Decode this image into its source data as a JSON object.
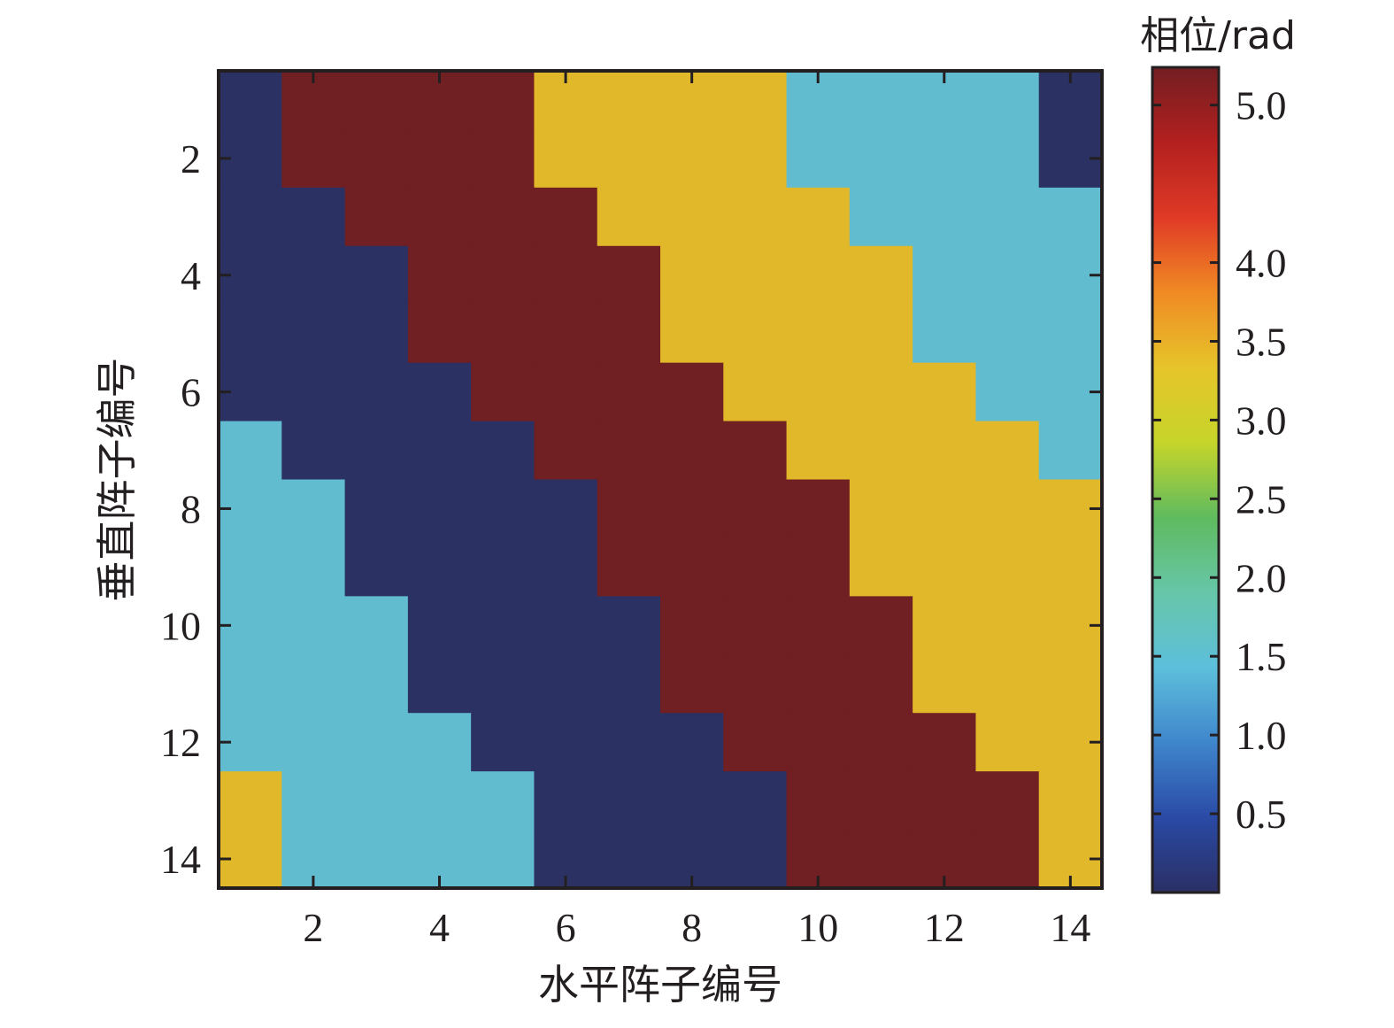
{
  "chart_data": {
    "type": "heatmap",
    "xlabel": "水平阵子编号",
    "ylabel": "垂直阵子编号",
    "x_ticks": [
      "2",
      "4",
      "6",
      "8",
      "10",
      "12",
      "14"
    ],
    "y_ticks": [
      "2",
      "4",
      "6",
      "8",
      "10",
      "12",
      "14"
    ],
    "xlim": [
      0.5,
      14.5
    ],
    "ylim": [
      0.5,
      14.5
    ],
    "y_direction": "top-to-bottom",
    "colorbar": {
      "title": "相位/rad",
      "ticks": [
        "0.5",
        "1.0",
        "1.5",
        "2.0",
        "2.5",
        "3.0",
        "3.5",
        "4.0",
        "5.0"
      ],
      "range": [
        0,
        5.24
      ],
      "colors": [
        "#2b2f64",
        "#2a4aa5",
        "#3f86cc",
        "#5dbfdb",
        "#67c6a8",
        "#5fbb5e",
        "#c7d52a",
        "#e6c42a",
        "#f08a24",
        "#e03a26",
        "#b3201f",
        "#731e22"
      ]
    },
    "phase_levels": [
      0,
      1.5708,
      3.1416,
      4.7124
    ],
    "level_colors": [
      "#2b3163",
      "#61bcd0",
      "#e1b829",
      "#701f23"
    ],
    "grid": [
      [
        0,
        3,
        3,
        3,
        3,
        2,
        2,
        2,
        2,
        1,
        1,
        1,
        1,
        0
      ],
      [
        0,
        3,
        3,
        3,
        3,
        2,
        2,
        2,
        2,
        1,
        1,
        1,
        1,
        0
      ],
      [
        0,
        0,
        3,
        3,
        3,
        3,
        2,
        2,
        2,
        2,
        1,
        1,
        1,
        1
      ],
      [
        0,
        0,
        0,
        3,
        3,
        3,
        3,
        2,
        2,
        2,
        2,
        1,
        1,
        1
      ],
      [
        0,
        0,
        0,
        3,
        3,
        3,
        3,
        2,
        2,
        2,
        2,
        1,
        1,
        1
      ],
      [
        0,
        0,
        0,
        0,
        3,
        3,
        3,
        3,
        2,
        2,
        2,
        2,
        1,
        1
      ],
      [
        1,
        0,
        0,
        0,
        0,
        3,
        3,
        3,
        3,
        2,
        2,
        2,
        2,
        1
      ],
      [
        1,
        1,
        0,
        0,
        0,
        0,
        3,
        3,
        3,
        3,
        2,
        2,
        2,
        2
      ],
      [
        1,
        1,
        0,
        0,
        0,
        0,
        3,
        3,
        3,
        3,
        2,
        2,
        2,
        2
      ],
      [
        1,
        1,
        1,
        0,
        0,
        0,
        0,
        3,
        3,
        3,
        3,
        2,
        2,
        2
      ],
      [
        1,
        1,
        1,
        0,
        0,
        0,
        0,
        3,
        3,
        3,
        3,
        2,
        2,
        2
      ],
      [
        1,
        1,
        1,
        1,
        0,
        0,
        0,
        0,
        3,
        3,
        3,
        3,
        2,
        2
      ],
      [
        2,
        1,
        1,
        1,
        1,
        0,
        0,
        0,
        0,
        3,
        3,
        3,
        3,
        2
      ],
      [
        2,
        1,
        1,
        1,
        1,
        0,
        0,
        0,
        0,
        3,
        3,
        3,
        3,
        2
      ]
    ]
  }
}
